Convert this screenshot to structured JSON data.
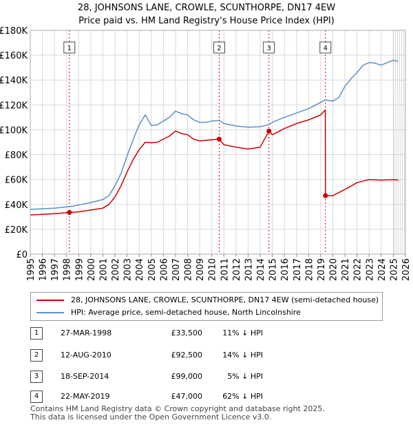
{
  "title_line1": "28, JOHNSONS LANE, CROWLE, SCUNTHORPE, DN17 4EW",
  "title_line2": "Price paid vs. HM Land Registry's House Price Index (HPI)",
  "colors": {
    "property": "#cc0000",
    "hpi": "#5b8fc8",
    "grid": "#d8d8d8",
    "plot_bg": "#ffffff",
    "marker_line": "#cc0000"
  },
  "chart_data": {
    "type": "line",
    "title": "Price paid vs. HM Land Registry's House Price Index (HPI)",
    "xlabel": "",
    "ylabel": "",
    "xlim": [
      1995,
      2026
    ],
    "ylim": [
      0,
      180000
    ],
    "x_ticks": [
      1995,
      1996,
      1997,
      1998,
      1999,
      2000,
      2001,
      2002,
      2003,
      2004,
      2005,
      2006,
      2007,
      2008,
      2009,
      2010,
      2011,
      2012,
      2013,
      2014,
      2015,
      2016,
      2017,
      2018,
      2019,
      2020,
      2021,
      2022,
      2023,
      2024,
      2025,
      2026
    ],
    "y_ticks": [
      0,
      20000,
      40000,
      60000,
      80000,
      100000,
      120000,
      140000,
      160000,
      180000
    ],
    "y_tick_labels": [
      "£0",
      "£20K",
      "£40K",
      "£60K",
      "£80K",
      "£100K",
      "£120K",
      "£140K",
      "£160K",
      "£180K"
    ],
    "series": [
      {
        "name": "HPI: Average price, semi-detached house, North Lincolnshire",
        "x": [
          1995,
          1996,
          1997,
          1998,
          1998.5,
          1999,
          2000,
          2001,
          2001.5,
          2002,
          2002.5,
          2003,
          2003.5,
          2004,
          2004.5,
          2005,
          2005.5,
          2006,
          2006.5,
          2007,
          2007.5,
          2008,
          2008.5,
          2009,
          2009.5,
          2010,
          2010.6,
          2011,
          2012,
          2013,
          2014,
          2014.7,
          2015,
          2016,
          2017,
          2018,
          2019,
          2019.4,
          2020,
          2020.5,
          2021,
          2021.5,
          2022,
          2022.5,
          2023,
          2023.5,
          2024,
          2024.5,
          2025,
          2025.4
        ],
        "values": [
          36000,
          36500,
          37000,
          38000,
          38500,
          39500,
          41500,
          44000,
          47000,
          55000,
          65000,
          79000,
          92000,
          104000,
          112000,
          103500,
          104000,
          107000,
          110000,
          115000,
          113000,
          112000,
          108000,
          106000,
          106000,
          107000,
          107500,
          105000,
          103000,
          102000,
          102500,
          104000,
          106000,
          110000,
          113500,
          117000,
          122000,
          124000,
          123000,
          126000,
          135000,
          141000,
          146000,
          152000,
          154000,
          153500,
          152000,
          154000,
          156000,
          155000
        ]
      },
      {
        "name": "28, JOHNSONS LANE, CROWLE, SCUNTHORPE, DN17 4EW (semi-detached house)",
        "x": [
          1995,
          1996,
          1997,
          1998.23,
          1999,
          2000,
          2001,
          2001.5,
          2002,
          2002.5,
          2003,
          2003.5,
          2004,
          2004.5,
          2005,
          2005.5,
          2006,
          2006.5,
          2007,
          2007.5,
          2008,
          2008.5,
          2009,
          2009.5,
          2010,
          2010.61,
          2011,
          2012,
          2013,
          2014,
          2014.72,
          2015,
          2016,
          2017,
          2018,
          2019,
          2019.38,
          2019.39,
          2020,
          2021,
          2022,
          2023,
          2024,
          2025,
          2025.4
        ],
        "values": [
          31500,
          32000,
          32500,
          33500,
          34000,
          35500,
          37000,
          40000,
          46000,
          55000,
          66000,
          76000,
          84000,
          90000,
          89500,
          90000,
          92500,
          95000,
          99000,
          97000,
          96000,
          92500,
          91000,
          91500,
          92000,
          92500,
          88000,
          86000,
          84500,
          86000,
          99000,
          96000,
          101000,
          105000,
          108000,
          112000,
          116000,
          47000,
          47000,
          52000,
          57500,
          60000,
          59500,
          60000,
          59500
        ]
      }
    ],
    "sales_markers": [
      {
        "label": "1",
        "x": 1998.23,
        "value": 33500
      },
      {
        "label": "2",
        "x": 2010.61,
        "value": 92500
      },
      {
        "label": "3",
        "x": 2014.72,
        "value": 99000
      },
      {
        "label": "4",
        "x": 2019.39,
        "value": 47000
      }
    ]
  },
  "legend": {
    "property": "28, JOHNSONS LANE, CROWLE, SCUNTHORPE, DN17 4EW (semi-detached house)",
    "hpi": "HPI: Average price, semi-detached house, North Lincolnshire"
  },
  "sales": [
    {
      "num": "1",
      "date": "27-MAR-1998",
      "price": "£33,500",
      "hpi": "11% ↓ HPI"
    },
    {
      "num": "2",
      "date": "12-AUG-2010",
      "price": "£92,500",
      "hpi": "14% ↓ HPI"
    },
    {
      "num": "3",
      "date": "18-SEP-2014",
      "price": "£99,000",
      "hpi": "5% ↓ HPI"
    },
    {
      "num": "4",
      "date": "22-MAY-2019",
      "price": "£47,000",
      "hpi": "62% ↓ HPI"
    }
  ],
  "footer_line1": "Contains HM Land Registry data © Crown copyright and database right 2025.",
  "footer_line2": "This data is licensed under the Open Government Licence v3.0."
}
